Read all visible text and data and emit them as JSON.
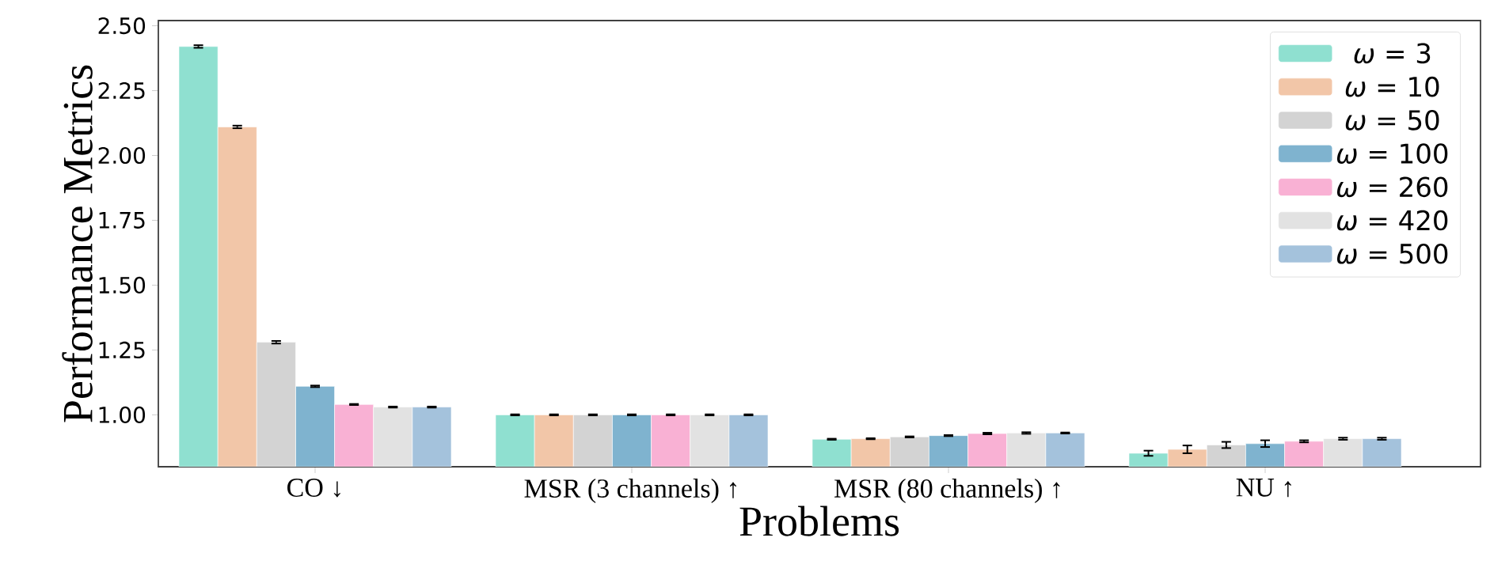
{
  "chart_data": {
    "type": "bar",
    "xlabel": "Problems",
    "ylabel": "Performance Metrics",
    "categories": [
      "CO ↓",
      "MSR (3 channels) ↑",
      "MSR (80 channels) ↑",
      "NU ↑"
    ],
    "series": [
      {
        "name": "*ω* = 3",
        "color": "#8fe0d0",
        "values": [
          2.42,
          1.0,
          0.906,
          0.852
        ],
        "errors": [
          0.005,
          0.002,
          0.002,
          0.01
        ]
      },
      {
        "name": "*ω* = 10",
        "color": "#f2c6a8",
        "values": [
          2.11,
          1.0,
          0.908,
          0.867
        ],
        "errors": [
          0.005,
          0.002,
          0.002,
          0.015
        ]
      },
      {
        "name": "*ω* = 50",
        "color": "#d3d3d3",
        "values": [
          1.28,
          1.0,
          0.915,
          0.884
        ],
        "errors": [
          0.005,
          0.002,
          0.002,
          0.012
        ]
      },
      {
        "name": "*ω* = 100",
        "color": "#7fb3cf",
        "values": [
          1.11,
          1.0,
          0.92,
          0.889
        ],
        "errors": [
          0.003,
          0.002,
          0.002,
          0.013
        ]
      },
      {
        "name": "*ω* = 260",
        "color": "#f9b1d4",
        "values": [
          1.04,
          1.0,
          0.928,
          0.898
        ],
        "errors": [
          0.002,
          0.002,
          0.003,
          0.004
        ]
      },
      {
        "name": "*ω* = 420",
        "color": "#e2e2e2",
        "values": [
          1.03,
          1.0,
          0.93,
          0.908
        ],
        "errors": [
          0.002,
          0.002,
          0.003,
          0.004
        ]
      },
      {
        "name": "*ω* = 500",
        "color": "#a4c2dc",
        "values": [
          1.03,
          1.0,
          0.93,
          0.908
        ],
        "errors": [
          0.002,
          0.002,
          0.002,
          0.004
        ]
      }
    ],
    "ylim": [
      0.8,
      2.52
    ],
    "yticks": [
      {
        "value": 1.0,
        "label": "1.00"
      },
      {
        "value": 1.25,
        "label": "1.25"
      },
      {
        "value": 1.5,
        "label": "1.50"
      },
      {
        "value": 1.75,
        "label": "1.75"
      },
      {
        "value": 2.0,
        "label": "2.00"
      },
      {
        "value": 2.25,
        "label": "2.25"
      },
      {
        "value": 2.5,
        "label": "2.50"
      }
    ],
    "legend": "top right"
  }
}
